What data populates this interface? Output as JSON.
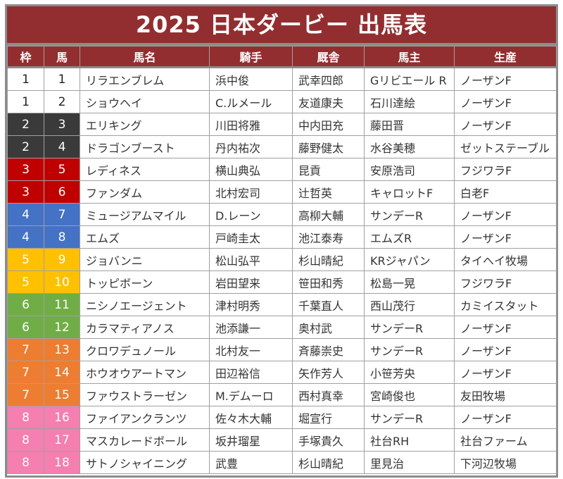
{
  "title": "2025 日本ダービー 出馬表",
  "colors": {
    "header": "#922e30",
    "waku": {
      "1": "#ffffff",
      "2": "#3a3a3a",
      "3": "#c00000",
      "4": "#4472c4",
      "5": "#ffc000",
      "6": "#70ad47",
      "7": "#ed7d31",
      "8": "#f47fb0"
    }
  },
  "columns": [
    "枠",
    "馬",
    "馬名",
    "騎手",
    "厩舎",
    "馬主",
    "生産"
  ],
  "rows": [
    [
      "1",
      "1",
      "リラエンブレム",
      "浜中俊",
      "武幸四郎",
      "Gリビエール R",
      "ノーザンF"
    ],
    [
      "1",
      "2",
      "ショウヘイ",
      "C.ルメール",
      "友道康夫",
      "石川達絵",
      "ノーザンF"
    ],
    [
      "2",
      "3",
      "エリキング",
      "川田将雅",
      "中内田充",
      "藤田晋",
      "ノーザンF"
    ],
    [
      "2",
      "4",
      "ドラゴンブースト",
      "丹内祐次",
      "藤野健太",
      "水谷美穂",
      "ゼットステーブル"
    ],
    [
      "3",
      "5",
      "レディネス",
      "横山典弘",
      "昆貢",
      "安原浩司",
      "フジワラF"
    ],
    [
      "3",
      "6",
      "ファンダム",
      "北村宏司",
      "辻哲英",
      "キャロットF",
      "白老F"
    ],
    [
      "4",
      "7",
      "ミュージアムマイル",
      "D.レーン",
      "高柳大輔",
      "サンデーR",
      "ノーザンF"
    ],
    [
      "4",
      "8",
      "エムズ",
      "戸崎圭太",
      "池江泰寿",
      "エムズR",
      "ノーザンF"
    ],
    [
      "5",
      "9",
      "ジョバンニ",
      "松山弘平",
      "杉山晴紀",
      "KRジャパン",
      "タイヘイ牧場"
    ],
    [
      "5",
      "10",
      "トッピボーン",
      "岩田望来",
      "笹田和秀",
      "松島一晃",
      "フジワラF"
    ],
    [
      "6",
      "11",
      "ニシノエージェント",
      "津村明秀",
      "千葉直人",
      "西山茂行",
      "カミイスタット"
    ],
    [
      "6",
      "12",
      "カラマティアノス",
      "池添謙一",
      "奥村武",
      "サンデーR",
      "ノーザンF"
    ],
    [
      "7",
      "13",
      "クロワデュノール",
      "北村友一",
      "斉藤崇史",
      "サンデーR",
      "ノーザンF"
    ],
    [
      "7",
      "14",
      "ホウオウアートマン",
      "田辺裕信",
      "矢作芳人",
      "小笹芳央",
      "ノーザンF"
    ],
    [
      "7",
      "15",
      "ファウストラーゼン",
      "M.デムーロ",
      "西村真幸",
      "宮崎俊也",
      "友田牧場"
    ],
    [
      "8",
      "16",
      "ファイアンクランツ",
      "佐々木大輔",
      "堀宣行",
      "サンデーR",
      "ノーザンF"
    ],
    [
      "8",
      "17",
      "マスカレードボール",
      "坂井瑠星",
      "手塚貴久",
      "社台RH",
      "社台ファーム"
    ],
    [
      "8",
      "18",
      "サトノシャイニング",
      "武豊",
      "杉山晴紀",
      "里見治",
      "下河辺牧場"
    ]
  ]
}
